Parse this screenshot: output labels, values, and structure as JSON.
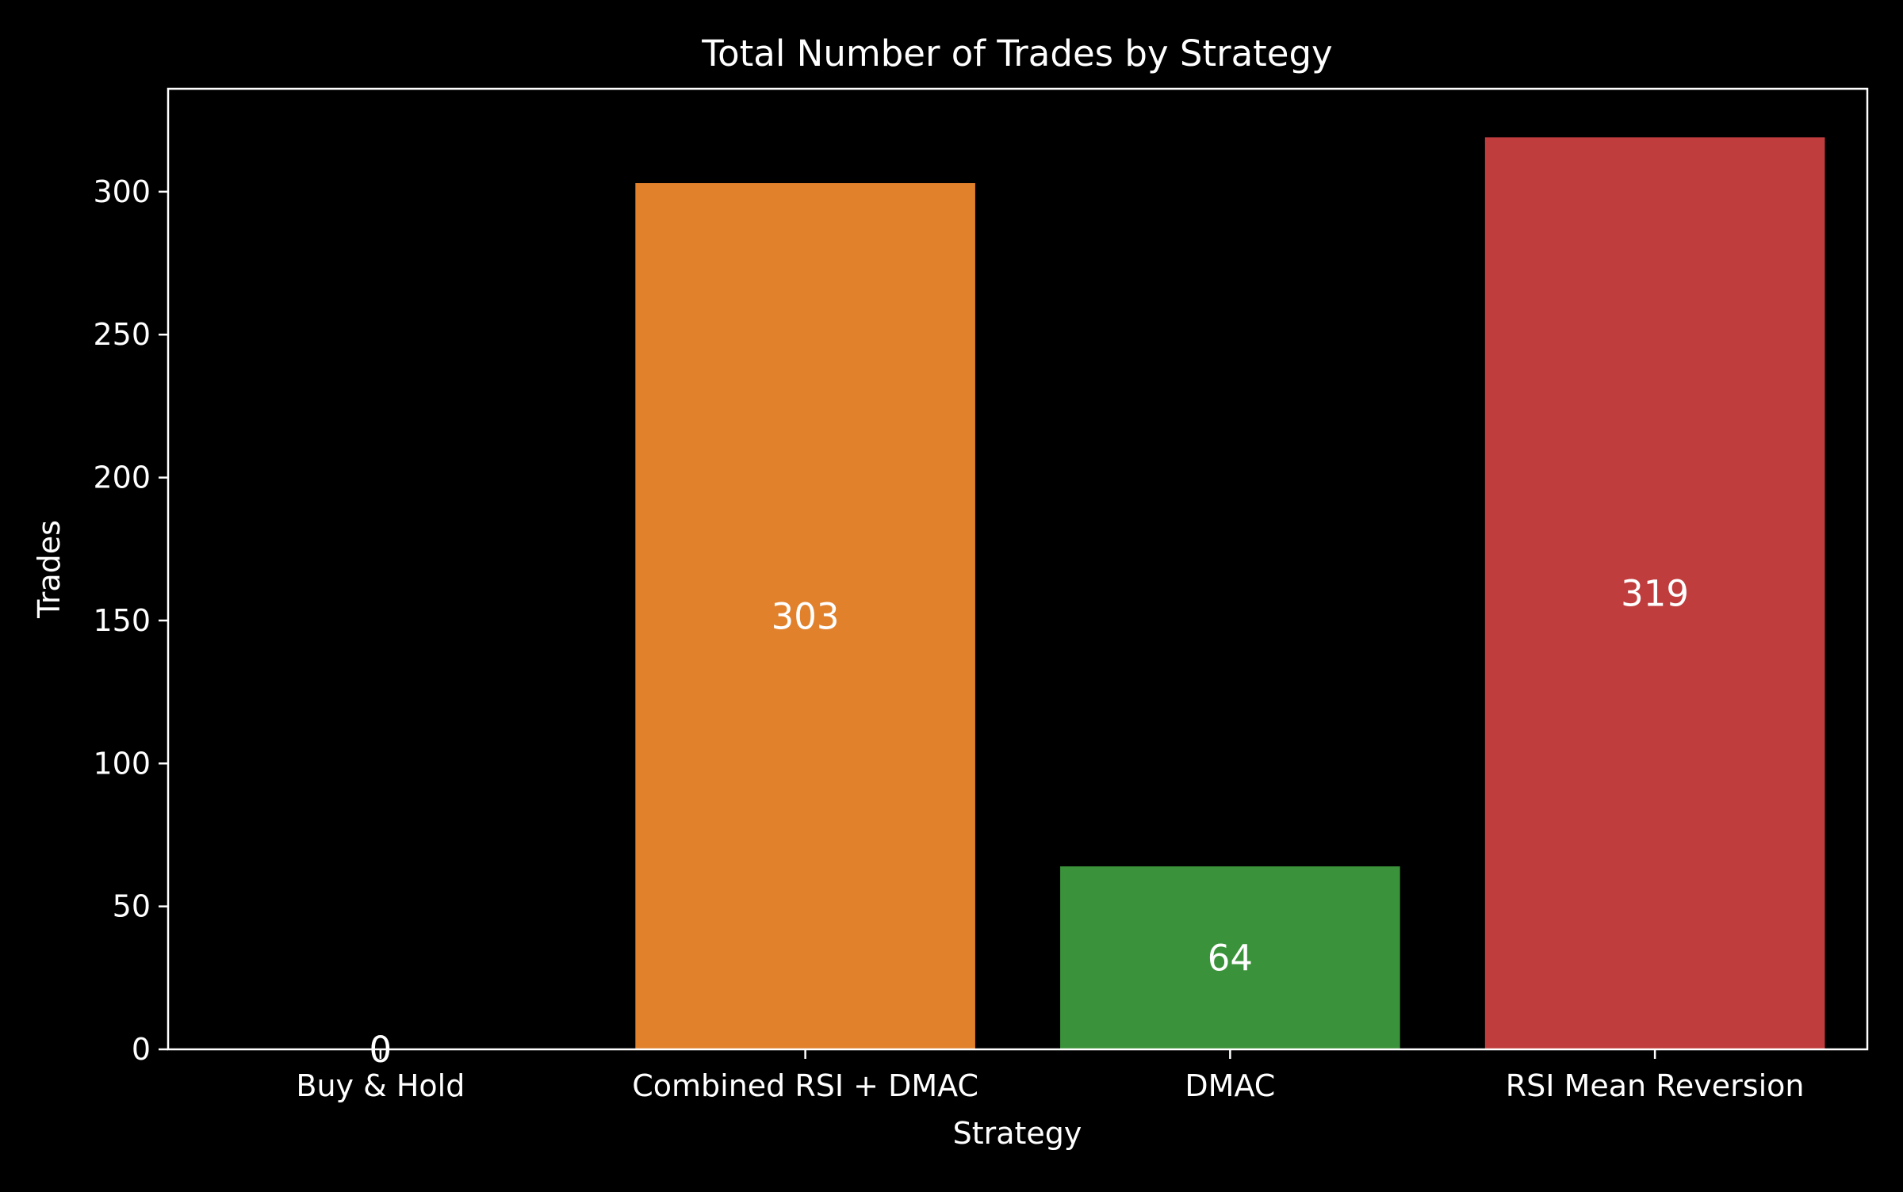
{
  "chart_data": {
    "type": "bar",
    "title": "Total Number of Trades by Strategy",
    "xlabel": "Strategy",
    "ylabel": "Trades",
    "categories": [
      "Buy & Hold",
      "Combined RSI + DMAC",
      "DMAC",
      "RSI Mean Reversion"
    ],
    "values": [
      0,
      303,
      64,
      319
    ],
    "data_labels": [
      "0",
      "303",
      "64",
      "319"
    ],
    "colors": [
      "#1f77b4",
      "#e1812c",
      "#3a923a",
      "#c03d3e"
    ],
    "ylim": [
      0,
      336
    ],
    "yticks": [
      0,
      50,
      100,
      150,
      200,
      250,
      300
    ],
    "ytick_labels": [
      "0",
      "50",
      "100",
      "150",
      "200",
      "250",
      "300"
    ],
    "grid": false,
    "legend": "none",
    "background": "#000000",
    "foreground": "#ffffff"
  }
}
